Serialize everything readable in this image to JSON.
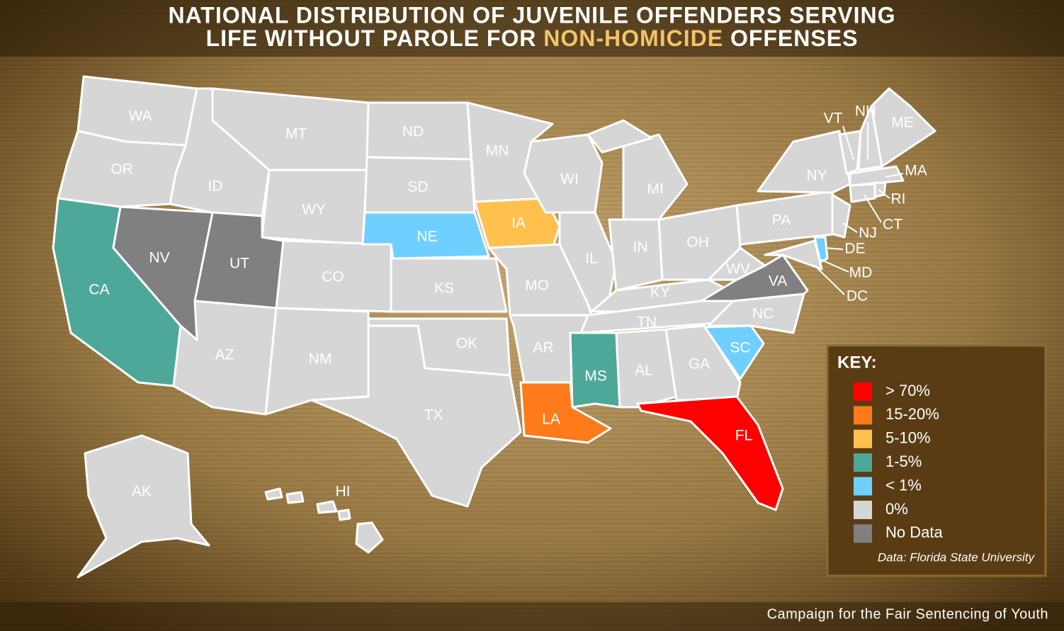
{
  "title": {
    "line1": "NATIONAL DISTRIBUTION OF JUVENILE OFFENDERS SERVING",
    "line2_before": "LIFE WITHOUT PAROLE FOR",
    "line2_highlight": "NON-HOMICIDE",
    "line2_after": "OFFENSES",
    "highlight_color": "#f3c46a"
  },
  "states": [
    {
      "label": "WA",
      "color": "#d6d6d6"
    },
    {
      "label": "OR",
      "color": "#d6d6d6"
    },
    {
      "label": "CA",
      "color": "#4ea89a"
    },
    {
      "label": "NV",
      "color": "#808080"
    },
    {
      "label": "ID",
      "color": "#d6d6d6"
    },
    {
      "label": "MT",
      "color": "#d6d6d6"
    },
    {
      "label": "WY",
      "color": "#d6d6d6"
    },
    {
      "label": "UT",
      "color": "#808080"
    },
    {
      "label": "CO",
      "color": "#d6d6d6"
    },
    {
      "label": "AZ",
      "color": "#d6d6d6"
    },
    {
      "label": "NM",
      "color": "#d6d6d6"
    },
    {
      "label": "ND",
      "color": "#d6d6d6"
    },
    {
      "label": "SD",
      "color": "#d6d6d6"
    },
    {
      "label": "NE",
      "color": "#6fd0ff"
    },
    {
      "label": "KS",
      "color": "#d6d6d6"
    },
    {
      "label": "OK",
      "color": "#d6d6d6"
    },
    {
      "label": "TX",
      "color": "#d6d6d6"
    },
    {
      "label": "MN",
      "color": "#d6d6d6"
    },
    {
      "label": "IA",
      "color": "#ffc04d"
    },
    {
      "label": "MO",
      "color": "#d6d6d6"
    },
    {
      "label": "AR",
      "color": "#d6d6d6"
    },
    {
      "label": "LA",
      "color": "#ff7a1a"
    },
    {
      "label": "WI",
      "color": "#d6d6d6"
    },
    {
      "label": "IL",
      "color": "#d6d6d6"
    },
    {
      "label": "MI",
      "color": "#d6d6d6"
    },
    {
      "label": "IN",
      "color": "#d6d6d6"
    },
    {
      "label": "OH",
      "color": "#d6d6d6"
    },
    {
      "label": "KY",
      "color": "#d6d6d6"
    },
    {
      "label": "TN",
      "color": "#d6d6d6"
    },
    {
      "label": "MS",
      "color": "#4ea89a"
    },
    {
      "label": "AL",
      "color": "#d6d6d6"
    },
    {
      "label": "GA",
      "color": "#d6d6d6"
    },
    {
      "label": "FL",
      "color": "#ff0000"
    },
    {
      "label": "SC",
      "color": "#6fd0ff"
    },
    {
      "label": "NC",
      "color": "#d6d6d6"
    },
    {
      "label": "VA",
      "color": "#808080"
    },
    {
      "label": "WV",
      "color": "#d6d6d6"
    },
    {
      "label": "PA",
      "color": "#d6d6d6"
    },
    {
      "label": "NY",
      "color": "#d6d6d6"
    },
    {
      "label": "MD",
      "color": "#d6d6d6"
    },
    {
      "label": "DE",
      "color": "#6fd0ff"
    },
    {
      "label": "NJ",
      "color": "#d6d6d6"
    },
    {
      "label": "DC",
      "color": "#d6d6d6"
    },
    {
      "label": "VT",
      "color": "#d6d6d6"
    },
    {
      "label": "NH",
      "color": "#d6d6d6"
    },
    {
      "label": "ME",
      "color": "#d6d6d6"
    },
    {
      "label": "MA",
      "color": "#d6d6d6"
    },
    {
      "label": "RI",
      "color": "#d6d6d6"
    },
    {
      "label": "CT",
      "color": "#d6d6d6"
    },
    {
      "label": "AK",
      "color": "#d6d6d6"
    },
    {
      "label": "HI",
      "color": "#d6d6d6"
    }
  ],
  "key": {
    "title": "KEY:",
    "items": [
      {
        "label": "> 70%",
        "color": "#ff0000"
      },
      {
        "label": "15-20%",
        "color": "#ff7a1a"
      },
      {
        "label": "5-10%",
        "color": "#ffc04d"
      },
      {
        "label": "1-5%",
        "color": "#4ea89a"
      },
      {
        "label": "< 1%",
        "color": "#6fd0ff"
      },
      {
        "label": "0%",
        "color": "#d6d6d6"
      },
      {
        "label": "No Data",
        "color": "#808080"
      }
    ],
    "source": "Data: Florida State University"
  },
  "credit": "Campaign for the Fair Sentencing of Youth"
}
